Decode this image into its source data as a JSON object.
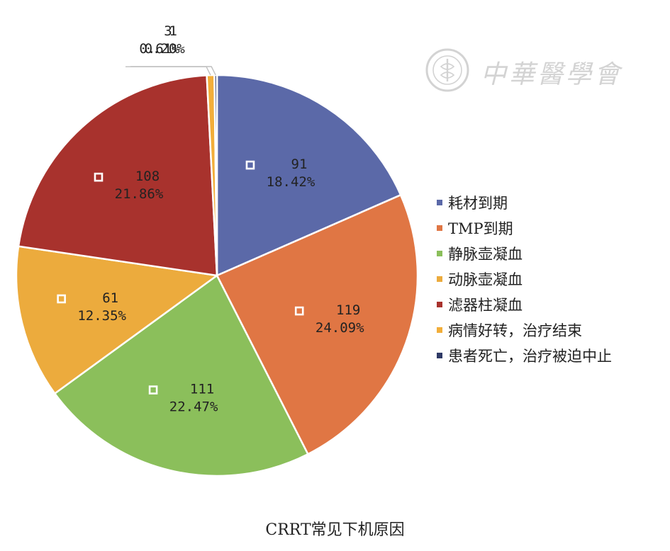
{
  "chart_data": {
    "type": "pie",
    "title": "CRRT常见下机原因",
    "legend_position": "right",
    "slices": [
      {
        "name": "耗材到期",
        "value": 91,
        "percent": "18.42%",
        "color": "#5b69a8"
      },
      {
        "name": "TMP到期",
        "value": 119,
        "percent": "24.09%",
        "color": "#e07644"
      },
      {
        "name": "静脉壶凝血",
        "value": 111,
        "percent": "22.47%",
        "color": "#8bbf5b"
      },
      {
        "name": "动脉壶凝血",
        "value": 61,
        "percent": "12.35%",
        "color": "#ecab3d"
      },
      {
        "name": "滤器柱凝血",
        "value": 108,
        "percent": "21.86%",
        "color": "#a8322d"
      },
      {
        "name": "病情好转，治疗结束",
        "value": 3,
        "percent": "0.61%",
        "color": "#f2ae3a"
      },
      {
        "name": "患者死亡，治疗被迫中止",
        "value": 1,
        "percent": "0.20%",
        "color": "#2f3a66"
      }
    ]
  },
  "watermark": {
    "text": "中華醫學會",
    "icon": "society-seal-icon"
  }
}
